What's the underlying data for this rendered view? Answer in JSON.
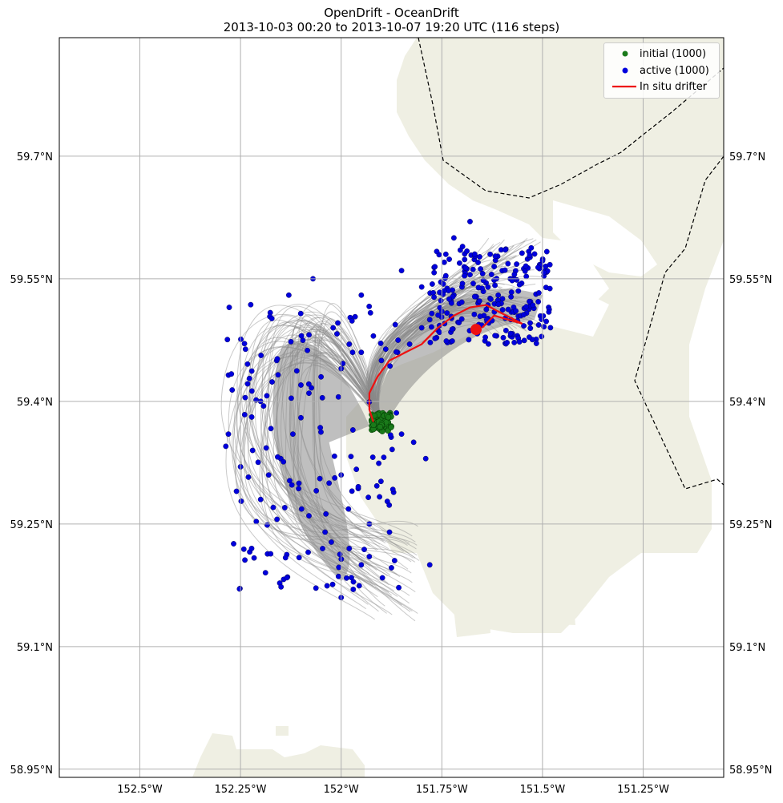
{
  "title": {
    "line1": "OpenDrift - OceanDrift",
    "line2": "2013-10-03 00:20 to 2013-10-07 19:20 UTC (116 steps)"
  },
  "colors": {
    "land": "#efefe3",
    "trajectory": "#8a8a8a",
    "initial": "#1a7a1a",
    "active": "#0000dd",
    "drifter": "#ee1111",
    "grid": "#b0b0b0",
    "boundary": "#000000"
  },
  "map": {
    "grid": true,
    "projection": "lon/lat",
    "lon_range": [
      -152.7,
      -151.05
    ],
    "lat_range": [
      58.94,
      59.845
    ]
  },
  "axes": {
    "x_ticks": [
      "152.5°W",
      "152.25°W",
      "152°W",
      "151.75°W",
      "151.5°W",
      "151.25°W"
    ],
    "x_values": [
      -152.5,
      -152.25,
      -152.0,
      -151.75,
      -151.5,
      -151.25
    ],
    "y_ticks_left": [
      "59.7°N",
      "59.55°N",
      "59.4°N",
      "59.25°N",
      "59.1°N",
      "58.95°N"
    ],
    "y_ticks_right": [
      "59.7°N",
      "59.55°N",
      "59.4°N",
      "59.25°N",
      "59.1°N",
      "58.95°N"
    ],
    "y_values": [
      59.7,
      59.55,
      59.4,
      59.25,
      59.1,
      58.95
    ]
  },
  "legend": {
    "placement": "top-right",
    "items": [
      {
        "label": "initial (1000)",
        "kind": "marker",
        "color": "#1a7a1a"
      },
      {
        "label": "active (1000)",
        "kind": "marker",
        "color": "#0000dd"
      },
      {
        "label": "In situ drifter",
        "kind": "line",
        "color": "#ee1111"
      }
    ]
  },
  "chart_data": {
    "type": "scatter",
    "seeding": {
      "label": "initial (1000)",
      "count": 1000,
      "center_lon": -151.9,
      "center_lat": 59.375,
      "spread_lon": 0.025,
      "spread_lat": 0.012
    },
    "active": {
      "label": "active (1000)",
      "count": 1000,
      "sampled_points": [
        [
          -151.63,
          59.58
        ],
        [
          -151.62,
          59.565
        ],
        [
          -151.66,
          59.57
        ],
        [
          -151.6,
          59.56
        ],
        [
          -151.58,
          59.55
        ],
        [
          -151.64,
          59.545
        ],
        [
          -151.68,
          59.555
        ],
        [
          -151.7,
          59.54
        ],
        [
          -151.56,
          59.535
        ],
        [
          -151.61,
          59.53
        ],
        [
          -151.66,
          59.52
        ],
        [
          -151.72,
          59.53
        ],
        [
          -151.75,
          59.51
        ],
        [
          -151.78,
          59.5
        ],
        [
          -151.8,
          59.49
        ],
        [
          -151.83,
          59.47
        ],
        [
          -151.86,
          59.46
        ],
        [
          -151.9,
          59.45
        ],
        [
          -151.92,
          59.48
        ],
        [
          -151.95,
          59.46
        ],
        [
          -151.98,
          59.47
        ],
        [
          -152.0,
          59.44
        ],
        [
          -152.02,
          59.49
        ],
        [
          -152.05,
          59.43
        ],
        [
          -152.08,
          59.41
        ],
        [
          -152.1,
          59.38
        ],
        [
          -152.12,
          59.36
        ],
        [
          -152.15,
          59.33
        ],
        [
          -152.18,
          59.31
        ],
        [
          -152.22,
          59.34
        ],
        [
          -152.25,
          59.32
        ],
        [
          -152.28,
          59.36
        ],
        [
          -152.26,
          59.29
        ],
        [
          -152.2,
          59.28
        ],
        [
          -152.14,
          59.27
        ],
        [
          -152.08,
          59.26
        ],
        [
          -152.04,
          59.24
        ],
        [
          -151.98,
          59.22
        ],
        [
          -151.95,
          59.2
        ],
        [
          -151.97,
          59.17
        ],
        [
          -152.0,
          59.16
        ],
        [
          -151.93,
          59.25
        ],
        [
          -151.88,
          59.24
        ],
        [
          -151.78,
          59.2
        ],
        [
          -151.79,
          59.33
        ],
        [
          -151.82,
          59.35
        ],
        [
          -151.85,
          59.36
        ],
        [
          -152.0,
          59.31
        ],
        [
          -152.03,
          59.3
        ],
        [
          -152.1,
          59.42
        ],
        [
          -152.16,
          59.45
        ],
        [
          -152.2,
          59.4
        ],
        [
          -152.13,
          59.53
        ],
        [
          -152.07,
          59.55
        ],
        [
          -151.95,
          59.53
        ],
        [
          -151.85,
          59.56
        ],
        [
          -151.8,
          59.54
        ],
        [
          -151.72,
          59.6
        ],
        [
          -151.68,
          59.62
        ],
        [
          -151.74,
          59.58
        ]
      ]
    },
    "drifter": {
      "label": "In situ drifter",
      "track": [
        [
          -151.92,
          59.375
        ],
        [
          -151.93,
          59.39
        ],
        [
          -151.93,
          59.41
        ],
        [
          -151.91,
          59.43
        ],
        [
          -151.88,
          59.45
        ],
        [
          -151.84,
          59.46
        ],
        [
          -151.8,
          59.47
        ],
        [
          -151.76,
          59.49
        ],
        [
          -151.72,
          59.505
        ],
        [
          -151.68,
          59.515
        ],
        [
          -151.64,
          59.518
        ],
        [
          -151.61,
          59.51
        ],
        [
          -151.57,
          59.5
        ],
        [
          -151.55,
          59.495
        ],
        [
          -151.62,
          59.505
        ],
        [
          -151.65,
          59.49
        ]
      ],
      "end_lon": -151.665,
      "end_lat": 59.488
    },
    "trajectories": {
      "description_color": "#8a8a8a",
      "envelope_south_lat": 59.13,
      "envelope_west_lon": -152.3,
      "envelope_east_lon": -151.48,
      "envelope_north_lat": 59.625
    }
  }
}
